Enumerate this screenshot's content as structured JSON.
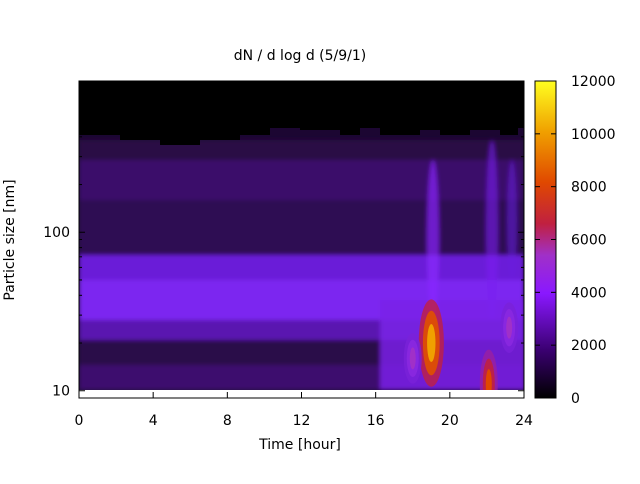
{
  "chart_data": {
    "type": "heatmap",
    "title": "dN / d log d (5/9/1)",
    "xlabel": "Time [hour]",
    "ylabel": "Particle size [nm]",
    "x_range": [
      0,
      24
    ],
    "x_ticks": [
      0,
      4,
      8,
      12,
      16,
      20,
      24
    ],
    "y_scale": "log",
    "y_range_nm": [
      9,
      900
    ],
    "y_tick_labels": [
      "10",
      "100"
    ],
    "colorbar": {
      "range": [
        0,
        12000
      ],
      "ticks": [
        0,
        2000,
        4000,
        6000,
        8000,
        10000,
        12000
      ],
      "colormap": "gnuplot (black-purple-red-orange-yellow)"
    },
    "features": [
      {
        "time_h": 19.0,
        "size_nm": 20,
        "value": 8500,
        "note": "burst"
      },
      {
        "time_h": 22.1,
        "size_nm": 11,
        "value": 7000,
        "note": "burst"
      },
      {
        "time_h": 18.0,
        "size_nm": 16,
        "value": 5000
      },
      {
        "time_h": 23.2,
        "size_nm": 25,
        "value": 5000
      }
    ],
    "background_mode": {
      "size_nm": 40,
      "value": 3000
    },
    "no_data_above_nm": 520
  }
}
